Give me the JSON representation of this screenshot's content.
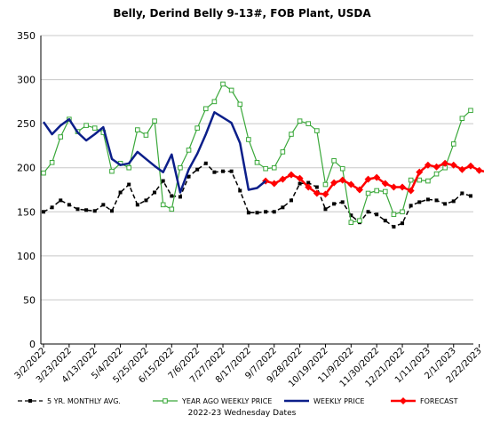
{
  "chart_data": {
    "type": "line",
    "title": "Belly, Derind Belly 9-13#, FOB Plant, USDA",
    "xlabel": "2022-23 Wednesday Dates",
    "ylabel": "",
    "ylim": [
      0,
      350
    ],
    "yticks": [
      0,
      50,
      100,
      150,
      200,
      250,
      300,
      350
    ],
    "grid": "horizontal",
    "legend_position": "bottom",
    "x_tick_labels": [
      "3/2/2022",
      "3/23/2022",
      "4/13/2022",
      "5/4/2022",
      "5/25/2022",
      "6/15/2022",
      "7/6/2022",
      "7/27/2022",
      "8/17/2022",
      "9/7/2022",
      "9/28/2022",
      "10/19/2022",
      "11/9/2022",
      "11/30/2022",
      "12/21/2022",
      "1/11/2023",
      "2/1/2023",
      "2/22/2023"
    ],
    "series": [
      {
        "name": "5 YR. MONTHLY AVG.",
        "color": "#000000",
        "style": "dashed",
        "marker": "square-filled",
        "values": [
          150,
          155,
          163,
          158,
          153,
          152,
          151,
          158,
          151,
          172,
          181,
          158,
          163,
          172,
          185,
          168,
          167,
          190,
          198,
          205,
          195,
          196,
          196,
          174,
          149,
          149,
          150,
          150,
          155,
          163,
          182,
          183,
          178,
          153,
          159,
          161,
          146,
          138,
          150,
          147,
          140,
          133,
          137,
          157,
          161,
          164,
          163,
          159,
          162,
          171,
          168
        ]
      },
      {
        "name": "YEAR AGO WEEKLY PRICE",
        "color": "#3aa83a",
        "style": "solid",
        "marker": "square-open",
        "values": [
          194,
          206,
          235,
          255,
          241,
          248,
          245,
          240,
          196,
          205,
          200,
          243,
          237,
          253,
          158,
          153,
          200,
          220,
          245,
          267,
          275,
          295,
          288,
          272,
          232,
          206,
          199,
          200,
          218,
          238,
          253,
          250,
          242,
          181,
          208,
          199,
          138,
          140,
          171,
          174,
          173,
          147,
          150,
          186,
          186,
          185,
          193,
          200,
          227,
          256,
          265
        ]
      },
      {
        "name": "WEEKLY PRICE",
        "color": "#0c1f8a",
        "style": "solid",
        "marker": "none",
        "values": [
          252,
          238,
          248,
          255,
          240,
          231,
          238,
          246,
          210,
          203,
          205,
          218,
          210,
          202,
          195,
          215,
          172,
          198,
          216,
          238,
          263,
          257,
          251,
          228,
          175,
          177,
          185
        ]
      },
      {
        "name": "FORECAST",
        "color": "#ff0000",
        "style": "solid",
        "marker": "diamond-filled",
        "start_index": 26,
        "values": [
          185,
          182,
          187,
          192,
          188,
          178,
          171,
          170,
          183,
          186,
          181,
          175,
          187,
          189,
          182,
          178,
          178,
          174,
          195,
          203,
          201,
          205,
          203,
          198,
          202,
          197,
          195
        ]
      }
    ]
  }
}
